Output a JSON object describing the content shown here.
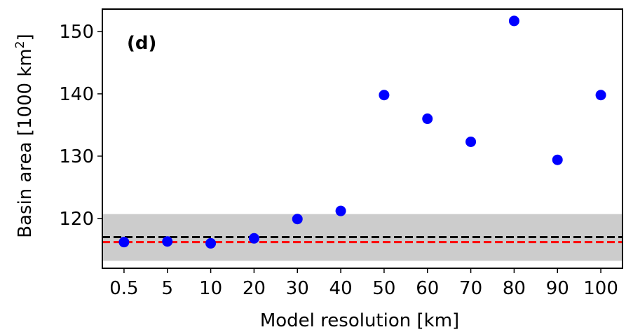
{
  "chart_data": {
    "type": "scatter",
    "panel_label": "(d)",
    "xlabel": "Model resolution [km]",
    "ylabel_main": "Basin area [1000 km",
    "ylabel_sup": "2",
    "ylabel_close": "]",
    "categories": [
      "0.5",
      "5",
      "10",
      "20",
      "30",
      "40",
      "50",
      "60",
      "70",
      "80",
      "90",
      "100"
    ],
    "series": [
      {
        "color": "#0000ff",
        "values": [
          116.2,
          116.3,
          116.0,
          116.8,
          119.9,
          121.2,
          139.8,
          136.0,
          132.3,
          151.7,
          129.4,
          139.8
        ]
      }
    ],
    "reference_lines": [
      {
        "value": 117.0,
        "color": "#000000",
        "style": "dashed"
      },
      {
        "value": 116.2,
        "color": "#ff0000",
        "style": "dashed"
      }
    ],
    "shaded_band": {
      "from": 113.2,
      "to": 120.7,
      "color": "#cccccc"
    },
    "ylim": [
      112.0,
      153.6
    ],
    "yticks": [
      120,
      130,
      140,
      150
    ],
    "grid": false
  }
}
